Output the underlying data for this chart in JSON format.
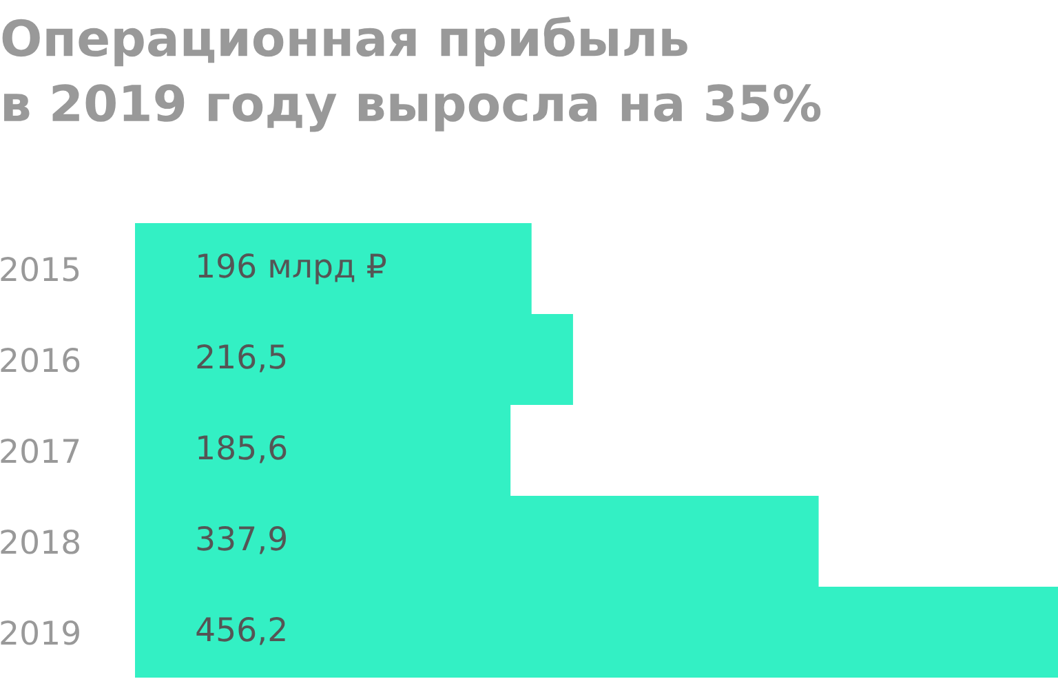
{
  "chart_data": {
    "type": "bar",
    "orientation": "horizontal",
    "title": "Операционная прибыль\nв 2019 году выросла на 35%",
    "categories": [
      "2015",
      "2016",
      "2017",
      "2018",
      "2019"
    ],
    "values": [
      196,
      216.5,
      185.6,
      337.9,
      456.2
    ],
    "value_labels": [
      "196 млрд ₽",
      "216,5",
      "185,6",
      "337,9",
      "456,2"
    ],
    "color": "#33f0c4",
    "tick_labels": "y",
    "grid": false,
    "legend": false
  }
}
